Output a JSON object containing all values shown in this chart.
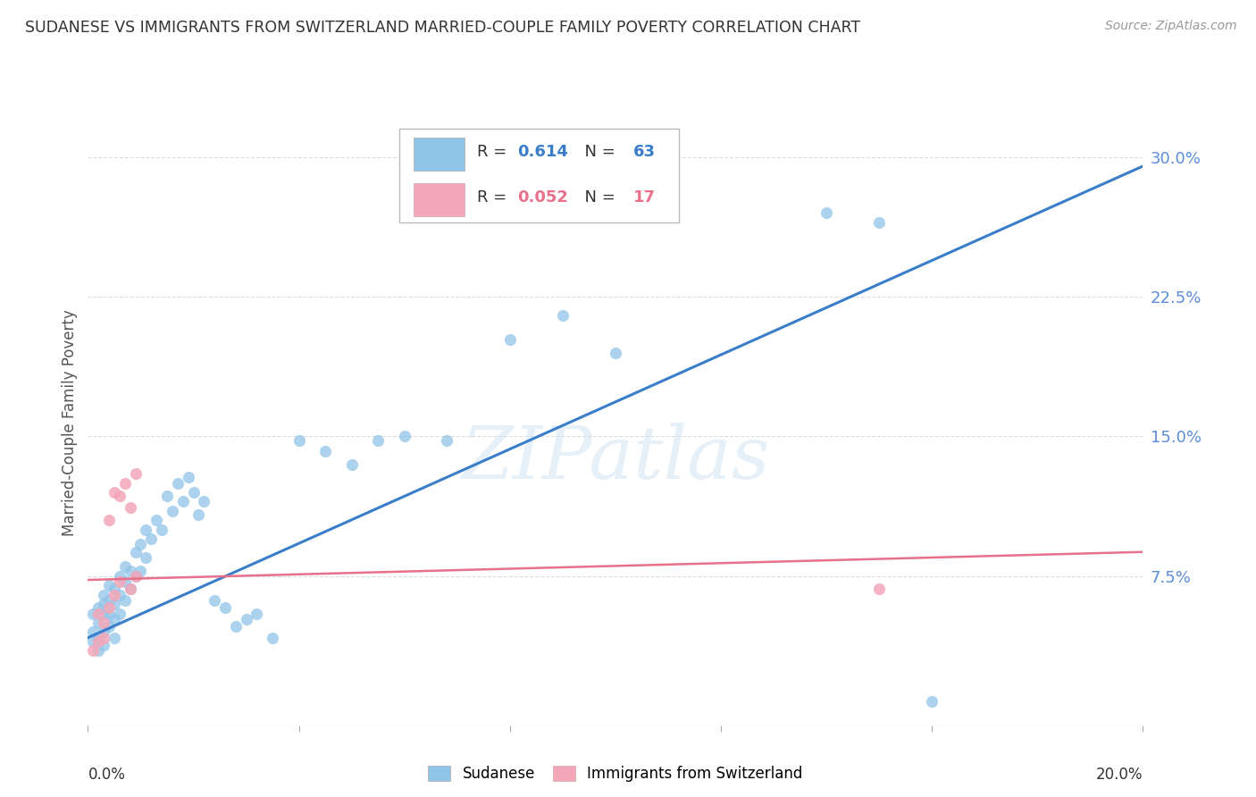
{
  "title": "SUDANESE VS IMMIGRANTS FROM SWITZERLAND MARRIED-COUPLE FAMILY POVERTY CORRELATION CHART",
  "source": "Source: ZipAtlas.com",
  "ylabel": "Married-Couple Family Poverty",
  "ytick_values": [
    0.075,
    0.15,
    0.225,
    0.3
  ],
  "xlim": [
    0.0,
    0.2
  ],
  "ylim": [
    -0.005,
    0.32
  ],
  "watermark": "ZIPatlas",
  "legend_blue_R_val": "0.614",
  "legend_blue_N_val": "63",
  "legend_pink_R_val": "0.052",
  "legend_pink_N_val": "17",
  "blue_color": "#90c4e8",
  "pink_color": "#f4a7b9",
  "blue_line_color": "#3a7dc9",
  "pink_line_color": "#e8708a",
  "title_color": "#333333",
  "axis_label_color": "#555555",
  "tick_color_blue": "#5b8dd9",
  "grid_color": "#dddddd",
  "blue_scatter_x": [
    0.001,
    0.001,
    0.001,
    0.002,
    0.002,
    0.002,
    0.002,
    0.003,
    0.003,
    0.003,
    0.003,
    0.003,
    0.004,
    0.004,
    0.004,
    0.004,
    0.005,
    0.005,
    0.005,
    0.005,
    0.006,
    0.006,
    0.006,
    0.007,
    0.007,
    0.007,
    0.008,
    0.008,
    0.009,
    0.009,
    0.01,
    0.01,
    0.011,
    0.011,
    0.012,
    0.013,
    0.014,
    0.015,
    0.016,
    0.017,
    0.018,
    0.019,
    0.02,
    0.021,
    0.022,
    0.024,
    0.026,
    0.028,
    0.03,
    0.032,
    0.035,
    0.04,
    0.045,
    0.05,
    0.055,
    0.06,
    0.068,
    0.08,
    0.09,
    0.1,
    0.14,
    0.15,
    0.16
  ],
  "blue_scatter_y": [
    0.04,
    0.045,
    0.055,
    0.035,
    0.042,
    0.05,
    0.058,
    0.038,
    0.045,
    0.055,
    0.06,
    0.065,
    0.048,
    0.055,
    0.062,
    0.07,
    0.042,
    0.052,
    0.06,
    0.068,
    0.055,
    0.065,
    0.075,
    0.062,
    0.072,
    0.08,
    0.068,
    0.078,
    0.075,
    0.088,
    0.078,
    0.092,
    0.085,
    0.1,
    0.095,
    0.105,
    0.1,
    0.118,
    0.11,
    0.125,
    0.115,
    0.128,
    0.12,
    0.108,
    0.115,
    0.062,
    0.058,
    0.048,
    0.052,
    0.055,
    0.042,
    0.148,
    0.142,
    0.135,
    0.148,
    0.15,
    0.148,
    0.202,
    0.215,
    0.195,
    0.27,
    0.265,
    0.008
  ],
  "pink_scatter_x": [
    0.001,
    0.002,
    0.002,
    0.003,
    0.003,
    0.004,
    0.004,
    0.005,
    0.005,
    0.006,
    0.006,
    0.007,
    0.008,
    0.008,
    0.009,
    0.009,
    0.15
  ],
  "pink_scatter_y": [
    0.035,
    0.04,
    0.055,
    0.042,
    0.05,
    0.058,
    0.105,
    0.065,
    0.12,
    0.072,
    0.118,
    0.125,
    0.068,
    0.112,
    0.075,
    0.13,
    0.068
  ],
  "blue_line_x0": 0.0,
  "blue_line_y0": 0.042,
  "blue_line_x1": 0.2,
  "blue_line_y1": 0.295,
  "pink_line_x0": 0.0,
  "pink_line_y0": 0.073,
  "pink_line_x1": 0.2,
  "pink_line_y1": 0.088
}
